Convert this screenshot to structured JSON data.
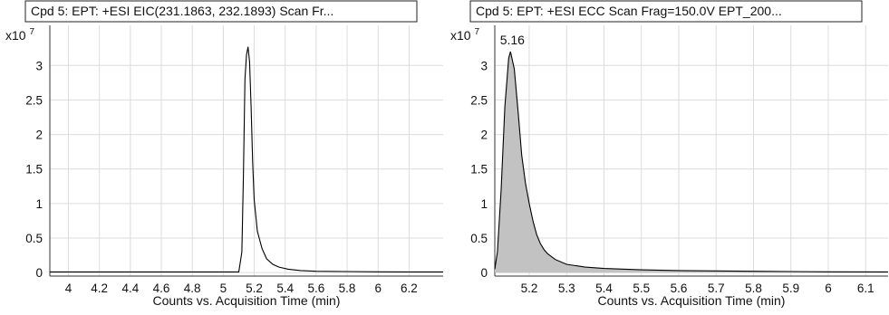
{
  "chart_data": [
    {
      "type": "line",
      "title": "Cpd 5: EPT: +ESI EIC(231.1863, 232.1893) Scan Fr...",
      "xlabel": "Counts vs. Acquisition Time (min)",
      "ylabel": "",
      "y_scale_base": "x10",
      "y_scale_exp": "7",
      "xlim": [
        3.88,
        6.42
      ],
      "ylim": [
        -0.05,
        3.58
      ],
      "xticks": [
        "4",
        "4.2",
        "4.4",
        "4.6",
        "4.8",
        "5",
        "5.2",
        "5.4",
        "5.6",
        "5.8",
        "6",
        "6.2"
      ],
      "yticks": [
        "0",
        "0.5",
        "1",
        "1.5",
        "2",
        "2.5",
        "3"
      ],
      "filled": false,
      "peak_label": "",
      "series": [
        {
          "x": [
            3.88,
            5.1,
            5.12,
            5.13,
            5.14,
            5.15,
            5.16,
            5.17,
            5.18,
            5.19,
            5.2,
            5.22,
            5.25,
            5.28,
            5.32,
            5.36,
            5.42,
            5.5,
            5.6,
            5.8,
            6.0,
            6.2,
            6.42
          ],
          "y": [
            0.01,
            0.01,
            0.3,
            1.4,
            2.8,
            3.15,
            3.27,
            3.05,
            2.4,
            1.6,
            1.05,
            0.6,
            0.35,
            0.2,
            0.12,
            0.08,
            0.05,
            0.03,
            0.02,
            0.015,
            0.012,
            0.01,
            0.01
          ]
        }
      ]
    },
    {
      "type": "area",
      "title": "Cpd 5: EPT: +ESI ECC Scan Frag=150.0V EPT_200...",
      "xlabel": "Counts vs. Acquisition Time (min)",
      "ylabel": "",
      "y_scale_base": "x10",
      "y_scale_exp": "7",
      "xlim": [
        5.108,
        6.16
      ],
      "ylim": [
        -0.05,
        3.58
      ],
      "xticks": [
        "5.2",
        "5.3",
        "5.4",
        "5.5",
        "5.6",
        "5.7",
        "5.8",
        "5.9",
        "6",
        "6.1"
      ],
      "yticks": [
        "0",
        "0.5",
        "1",
        "1.5",
        "2",
        "2.5",
        "3"
      ],
      "filled": true,
      "peak_label": "5.16",
      "series": [
        {
          "x": [
            5.108,
            5.115,
            5.125,
            5.135,
            5.145,
            5.15,
            5.16,
            5.17,
            5.18,
            5.19,
            5.2,
            5.21,
            5.22,
            5.23,
            5.24,
            5.25,
            5.27,
            5.3,
            5.35,
            5.4,
            5.5,
            5.6,
            5.7,
            5.8,
            5.9,
            6.0,
            6.16
          ],
          "y": [
            0.05,
            0.3,
            1.2,
            2.4,
            3.1,
            3.2,
            2.95,
            2.35,
            1.7,
            1.3,
            1.0,
            0.75,
            0.55,
            0.42,
            0.33,
            0.27,
            0.19,
            0.12,
            0.08,
            0.06,
            0.04,
            0.03,
            0.025,
            0.02,
            0.015,
            0.012,
            0.01
          ]
        }
      ]
    }
  ]
}
